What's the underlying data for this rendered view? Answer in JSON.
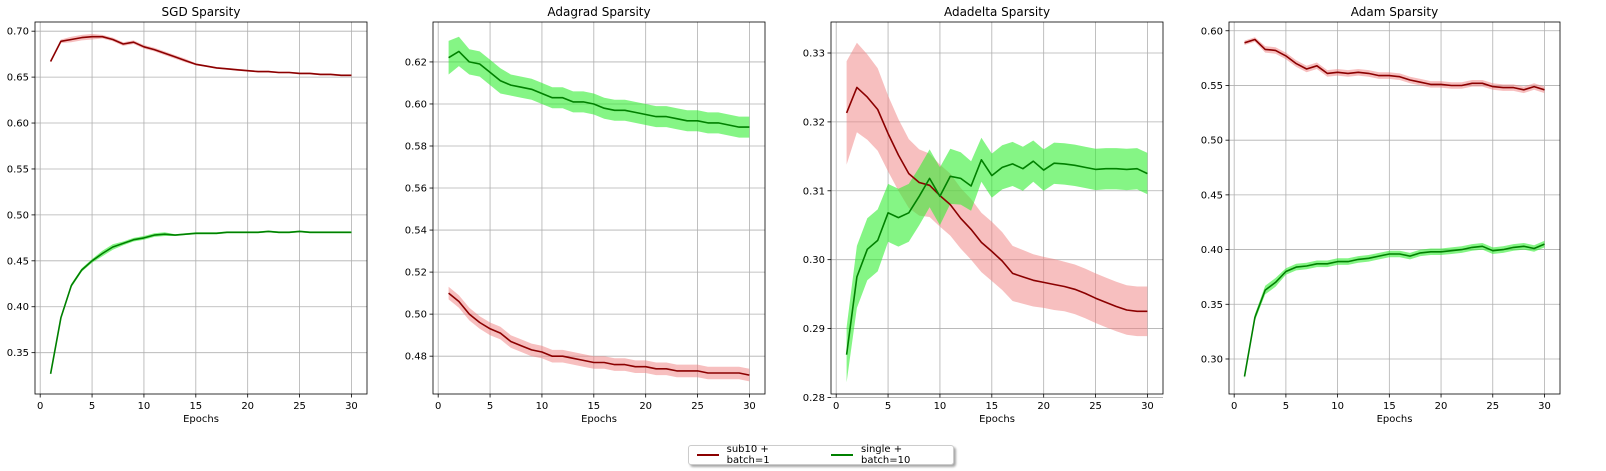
{
  "chart_data": [
    {
      "type": "line",
      "title": "SGD Sparsity",
      "xlabel": "Epochs",
      "ylabel": "",
      "xlim": [
        -0.5,
        31.5
      ],
      "ylim": [
        0.305,
        0.71
      ],
      "xticks": [
        0,
        5,
        10,
        15,
        20,
        25,
        30
      ],
      "yticks": [
        0.35,
        0.4,
        0.45,
        0.5,
        0.55,
        0.6,
        0.65,
        0.7
      ],
      "grid": true,
      "x": [
        1,
        2,
        3,
        4,
        5,
        6,
        7,
        8,
        9,
        10,
        11,
        12,
        13,
        14,
        15,
        16,
        17,
        18,
        19,
        20,
        21,
        22,
        23,
        24,
        25,
        26,
        27,
        28,
        29,
        30
      ],
      "series": [
        {
          "name": "sub10 + batch=1",
          "color": "#8b0000",
          "band_color": "#f08080",
          "values": [
            0.667,
            0.689,
            0.691,
            0.693,
            0.694,
            0.694,
            0.691,
            0.686,
            0.688,
            0.683,
            0.68,
            0.676,
            0.672,
            0.668,
            0.664,
            0.662,
            0.66,
            0.659,
            0.658,
            0.657,
            0.656,
            0.656,
            0.655,
            0.655,
            0.654,
            0.654,
            0.653,
            0.653,
            0.652,
            0.652
          ],
          "band": [
            0.001,
            0.002,
            0.003,
            0.003,
            0.003,
            0.002,
            0.002,
            0.002,
            0.002,
            0.002,
            0.002,
            0.002,
            0.002,
            0.002,
            0.001,
            0.001,
            0.001,
            0.001,
            0.001,
            0.001,
            0.001,
            0.001,
            0.001,
            0.001,
            0.001,
            0.001,
            0.001,
            0.001,
            0.001,
            0.001
          ]
        },
        {
          "name": "single + batch=10",
          "color": "#008000",
          "band_color": "#33ee33",
          "values": [
            0.327,
            0.388,
            0.423,
            0.44,
            0.45,
            0.458,
            0.465,
            0.469,
            0.473,
            0.475,
            0.478,
            0.479,
            0.478,
            0.479,
            0.48,
            0.48,
            0.48,
            0.481,
            0.481,
            0.481,
            0.481,
            0.482,
            0.481,
            0.481,
            0.482,
            0.481,
            0.481,
            0.481,
            0.481,
            0.481
          ],
          "band": [
            0.001,
            0.002,
            0.002,
            0.002,
            0.002,
            0.003,
            0.003,
            0.002,
            0.002,
            0.002,
            0.002,
            0.002,
            0.001,
            0.001,
            0.001,
            0.001,
            0.001,
            0.001,
            0.001,
            0.001,
            0.001,
            0.001,
            0.001,
            0.001,
            0.001,
            0.001,
            0.001,
            0.001,
            0.001,
            0.001
          ]
        }
      ]
    },
    {
      "type": "line",
      "title": "Adagrad Sparsity",
      "xlabel": "Epochs",
      "ylabel": "",
      "xlim": [
        -0.5,
        31.5
      ],
      "ylim": [
        0.462,
        0.639
      ],
      "xticks": [
        0,
        5,
        10,
        15,
        20,
        25,
        30
      ],
      "yticks": [
        0.48,
        0.5,
        0.52,
        0.54,
        0.56,
        0.58,
        0.6,
        0.62
      ],
      "grid": true,
      "x": [
        1,
        2,
        3,
        4,
        5,
        6,
        7,
        8,
        9,
        10,
        11,
        12,
        13,
        14,
        15,
        16,
        17,
        18,
        19,
        20,
        21,
        22,
        23,
        24,
        25,
        26,
        27,
        28,
        29,
        30
      ],
      "series": [
        {
          "name": "sub10 + batch=1",
          "color": "#8b0000",
          "band_color": "#f08080",
          "values": [
            0.51,
            0.506,
            0.5,
            0.496,
            0.493,
            0.491,
            0.487,
            0.485,
            0.483,
            0.482,
            0.48,
            0.48,
            0.479,
            0.478,
            0.477,
            0.477,
            0.476,
            0.476,
            0.475,
            0.475,
            0.474,
            0.474,
            0.473,
            0.473,
            0.473,
            0.472,
            0.472,
            0.472,
            0.472,
            0.471
          ],
          "band": [
            0.003,
            0.003,
            0.003,
            0.003,
            0.003,
            0.003,
            0.003,
            0.003,
            0.003,
            0.003,
            0.003,
            0.003,
            0.003,
            0.003,
            0.003,
            0.003,
            0.003,
            0.003,
            0.003,
            0.003,
            0.003,
            0.003,
            0.003,
            0.003,
            0.003,
            0.003,
            0.003,
            0.003,
            0.003,
            0.003
          ]
        },
        {
          "name": "single + batch=10",
          "color": "#008000",
          "band_color": "#33ee33",
          "values": [
            0.622,
            0.625,
            0.62,
            0.619,
            0.615,
            0.611,
            0.609,
            0.608,
            0.607,
            0.605,
            0.603,
            0.603,
            0.601,
            0.601,
            0.6,
            0.598,
            0.597,
            0.597,
            0.596,
            0.595,
            0.594,
            0.594,
            0.593,
            0.592,
            0.592,
            0.591,
            0.591,
            0.59,
            0.589,
            0.589
          ],
          "band": [
            0.008,
            0.007,
            0.006,
            0.006,
            0.006,
            0.006,
            0.005,
            0.005,
            0.005,
            0.005,
            0.005,
            0.005,
            0.005,
            0.005,
            0.005,
            0.005,
            0.005,
            0.005,
            0.005,
            0.005,
            0.005,
            0.005,
            0.005,
            0.005,
            0.005,
            0.005,
            0.005,
            0.005,
            0.005,
            0.005
          ]
        }
      ]
    },
    {
      "type": "line",
      "title": "Adadelta Sparsity",
      "xlabel": "Epochs",
      "ylabel": "",
      "xlim": [
        -0.5,
        31.5
      ],
      "ylim": [
        0.2805,
        0.3345
      ],
      "xticks": [
        0,
        5,
        10,
        15,
        20,
        25,
        30
      ],
      "yticks": [
        0.28,
        0.29,
        0.3,
        0.31,
        0.32,
        0.33
      ],
      "grid": true,
      "x": [
        1,
        2,
        3,
        4,
        5,
        6,
        7,
        8,
        9,
        10,
        11,
        12,
        13,
        14,
        15,
        16,
        17,
        18,
        19,
        20,
        21,
        22,
        23,
        24,
        25,
        26,
        27,
        28,
        29,
        30
      ],
      "series": [
        {
          "name": "sub10 + batch=1",
          "color": "#8b0000",
          "band_color": "#f08080",
          "values": [
            0.3213,
            0.325,
            0.3236,
            0.3218,
            0.3183,
            0.3152,
            0.3125,
            0.3112,
            0.3108,
            0.3093,
            0.308,
            0.306,
            0.3044,
            0.3025,
            0.3012,
            0.2998,
            0.298,
            0.2975,
            0.297,
            0.2967,
            0.2964,
            0.2961,
            0.2957,
            0.2951,
            0.2944,
            0.2938,
            0.2932,
            0.2927,
            0.2925,
            0.2925
          ],
          "band": [
            0.0075,
            0.0065,
            0.0062,
            0.006,
            0.0055,
            0.0052,
            0.005,
            0.0048,
            0.0046,
            0.0045,
            0.0045,
            0.0044,
            0.0044,
            0.0043,
            0.0043,
            0.0042,
            0.004,
            0.0039,
            0.0038,
            0.0037,
            0.0037,
            0.0036,
            0.0036,
            0.0036,
            0.0036,
            0.0036,
            0.0036,
            0.0036,
            0.0036,
            0.0036
          ]
        },
        {
          "name": "single + batch=10",
          "color": "#008000",
          "band_color": "#33ee33",
          "values": [
            0.2862,
            0.2975,
            0.3015,
            0.3028,
            0.3068,
            0.3061,
            0.3068,
            0.3092,
            0.3118,
            0.3092,
            0.3121,
            0.3118,
            0.3107,
            0.3145,
            0.3122,
            0.3134,
            0.3139,
            0.3132,
            0.3143,
            0.313,
            0.314,
            0.3139,
            0.3137,
            0.3134,
            0.3131,
            0.3132,
            0.3132,
            0.3131,
            0.3132,
            0.3125
          ],
          "band": [
            0.004,
            0.0045,
            0.0045,
            0.0045,
            0.0042,
            0.0042,
            0.0042,
            0.0042,
            0.0042,
            0.0042,
            0.004,
            0.0038,
            0.0036,
            0.0032,
            0.0032,
            0.0032,
            0.0032,
            0.0032,
            0.003,
            0.003,
            0.003,
            0.003,
            0.003,
            0.003,
            0.003,
            0.003,
            0.003,
            0.003,
            0.003,
            0.003
          ]
        }
      ]
    },
    {
      "type": "line",
      "title": "Adam Sparsity",
      "xlabel": "Epochs",
      "ylabel": "",
      "xlim": [
        -0.5,
        31.5
      ],
      "ylim": [
        0.268,
        0.608
      ],
      "xticks": [
        0,
        5,
        10,
        15,
        20,
        25,
        30
      ],
      "yticks": [
        0.3,
        0.35,
        0.4,
        0.45,
        0.5,
        0.55,
        0.6
      ],
      "grid": true,
      "x": [
        1,
        2,
        3,
        4,
        5,
        6,
        7,
        8,
        9,
        10,
        11,
        12,
        13,
        14,
        15,
        16,
        17,
        18,
        19,
        20,
        21,
        22,
        23,
        24,
        25,
        26,
        27,
        28,
        29,
        30
      ],
      "series": [
        {
          "name": "sub10 + batch=1",
          "color": "#8b0000",
          "band_color": "#f08080",
          "values": [
            0.589,
            0.592,
            0.583,
            0.582,
            0.577,
            0.57,
            0.565,
            0.568,
            0.561,
            0.562,
            0.561,
            0.562,
            0.561,
            0.559,
            0.559,
            0.558,
            0.555,
            0.553,
            0.551,
            0.551,
            0.55,
            0.55,
            0.552,
            0.552,
            0.549,
            0.548,
            0.548,
            0.546,
            0.549,
            0.546
          ],
          "band": [
            0.002,
            0.002,
            0.003,
            0.003,
            0.003,
            0.003,
            0.003,
            0.003,
            0.003,
            0.003,
            0.003,
            0.003,
            0.003,
            0.003,
            0.003,
            0.003,
            0.003,
            0.003,
            0.003,
            0.003,
            0.003,
            0.003,
            0.003,
            0.003,
            0.003,
            0.003,
            0.003,
            0.003,
            0.003,
            0.003
          ]
        },
        {
          "name": "single + batch=10",
          "color": "#008000",
          "band_color": "#33ee33",
          "values": [
            0.284,
            0.338,
            0.363,
            0.37,
            0.38,
            0.384,
            0.385,
            0.387,
            0.387,
            0.389,
            0.389,
            0.391,
            0.392,
            0.394,
            0.396,
            0.396,
            0.394,
            0.397,
            0.398,
            0.398,
            0.399,
            0.4,
            0.402,
            0.403,
            0.399,
            0.4,
            0.402,
            0.403,
            0.401,
            0.405
          ],
          "band": [
            0.002,
            0.003,
            0.004,
            0.004,
            0.003,
            0.003,
            0.003,
            0.003,
            0.003,
            0.003,
            0.003,
            0.003,
            0.003,
            0.003,
            0.003,
            0.003,
            0.003,
            0.003,
            0.003,
            0.003,
            0.003,
            0.003,
            0.003,
            0.003,
            0.003,
            0.003,
            0.003,
            0.003,
            0.003,
            0.003
          ]
        }
      ]
    }
  ],
  "legend": {
    "placement": "bottom-center",
    "items": [
      {
        "label": "sub10 + batch=1",
        "color": "#8b0000"
      },
      {
        "label": "single + batch=10",
        "color": "#008000"
      }
    ]
  }
}
